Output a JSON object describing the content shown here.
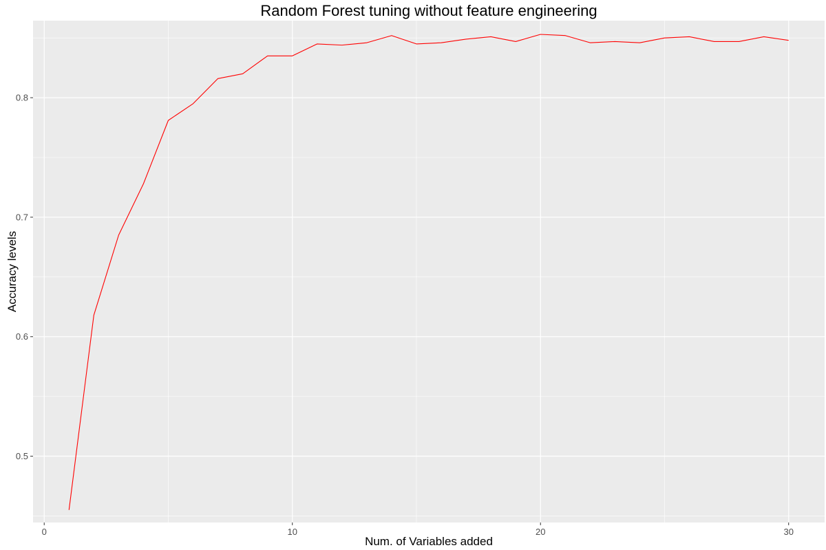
{
  "chart_data": {
    "type": "line",
    "title": "Random Forest tuning without feature engineering",
    "xlabel": "Num. of Variables added",
    "ylabel": "Accuracy levels",
    "xlim": [
      -0.45,
      31.45
    ],
    "ylim": [
      0.4445,
      0.8645
    ],
    "x_ticks": [
      0,
      10,
      20,
      30
    ],
    "y_ticks": [
      0.5,
      0.6,
      0.7,
      0.8
    ],
    "x_tick_labels": [
      "0",
      "10",
      "20",
      "30"
    ],
    "y_tick_labels": [
      "0.5",
      "0.6",
      "0.7",
      "0.8"
    ],
    "grid": true,
    "panel_background": "#EBEBEB",
    "grid_color": "#FFFFFF",
    "series": [
      {
        "color": "#FF0000",
        "x": [
          1,
          2,
          3,
          4,
          5,
          6,
          7,
          8,
          9,
          10,
          11,
          12,
          13,
          14,
          15,
          16,
          17,
          18,
          19,
          20,
          21,
          22,
          23,
          24,
          25,
          26,
          27,
          28,
          29,
          30
        ],
        "y": [
          0.455,
          0.618,
          0.685,
          0.728,
          0.781,
          0.795,
          0.816,
          0.82,
          0.835,
          0.835,
          0.845,
          0.844,
          0.846,
          0.852,
          0.845,
          0.846,
          0.849,
          0.851,
          0.847,
          0.853,
          0.852,
          0.846,
          0.847,
          0.846,
          0.85,
          0.851,
          0.847,
          0.847,
          0.851,
          0.848
        ]
      }
    ]
  }
}
